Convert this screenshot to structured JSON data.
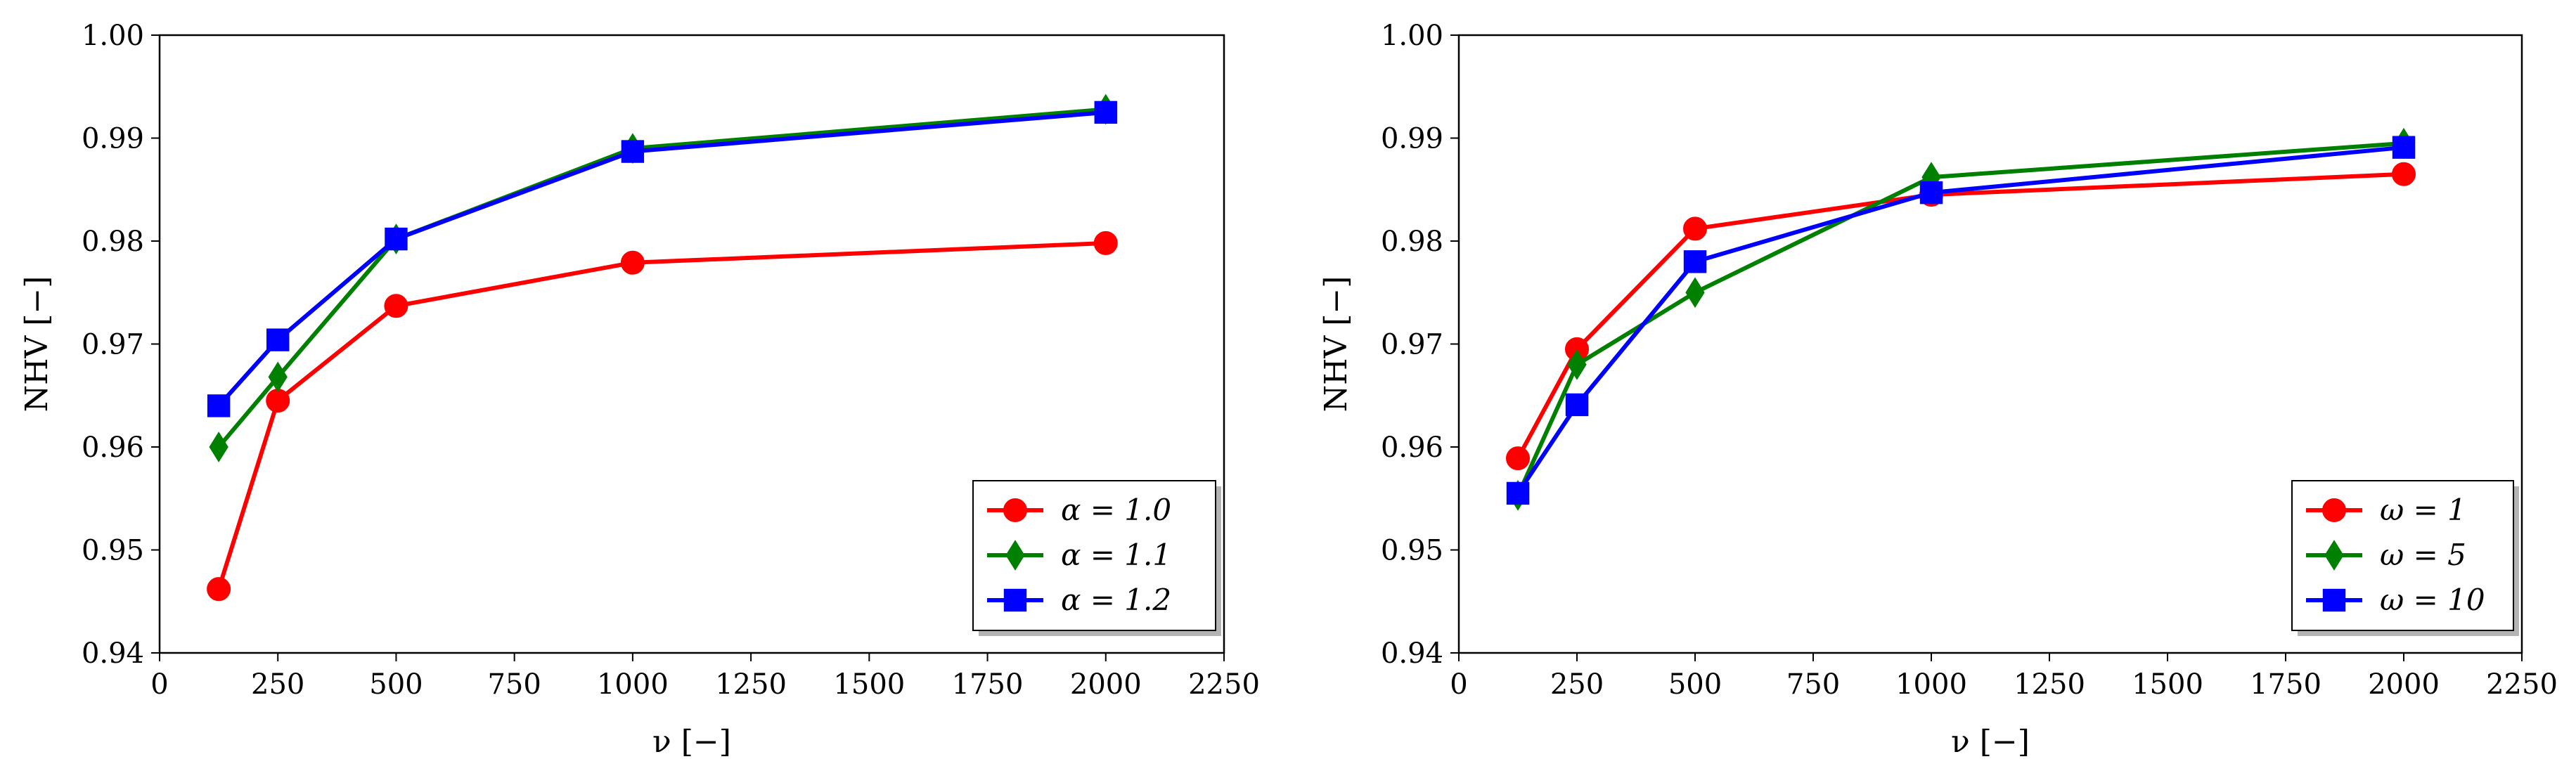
{
  "chart_data": [
    {
      "type": "line",
      "xlabel": "ν [−]",
      "ylabel": "NHV [−]",
      "xlim": [
        0,
        2250
      ],
      "ylim": [
        0.94,
        1.0
      ],
      "xticks": [
        0,
        250,
        500,
        750,
        1000,
        1250,
        1500,
        1750,
        2000,
        2250
      ],
      "xtick_labels": [
        "0",
        "250",
        "500",
        "750",
        "1000",
        "1250",
        "1500",
        "1750",
        "2000",
        "2250"
      ],
      "yticks": [
        0.94,
        0.95,
        0.96,
        0.97,
        0.98,
        0.99,
        1.0
      ],
      "ytick_labels": [
        "0.94",
        "0.95",
        "0.96",
        "0.97",
        "0.98",
        "0.99",
        "1.00"
      ],
      "grid": false,
      "legend_position": "bottom-right",
      "x": [
        125,
        250,
        500,
        1000,
        2000
      ],
      "series": [
        {
          "name": "α = 1.0",
          "color": "#ff0000",
          "marker": "circle",
          "values": [
            0.9462,
            0.9645,
            0.9737,
            0.9779,
            0.9798
          ]
        },
        {
          "name": "α = 1.1",
          "color": "#008000",
          "marker": "diamond",
          "values": [
            0.96,
            0.9668,
            0.9802,
            0.989,
            0.9928
          ]
        },
        {
          "name": "α = 1.2",
          "color": "#0000ff",
          "marker": "square",
          "values": [
            0.964,
            0.9704,
            0.9802,
            0.9887,
            0.9925
          ]
        }
      ]
    },
    {
      "type": "line",
      "xlabel": "ν [−]",
      "ylabel": "NHV [−]",
      "xlim": [
        0,
        2250
      ],
      "ylim": [
        0.94,
        1.0
      ],
      "xticks": [
        0,
        250,
        500,
        750,
        1000,
        1250,
        1500,
        1750,
        2000,
        2250
      ],
      "xtick_labels": [
        "0",
        "250",
        "500",
        "750",
        "1000",
        "1250",
        "1500",
        "1750",
        "2000",
        "2250"
      ],
      "yticks": [
        0.94,
        0.95,
        0.96,
        0.97,
        0.98,
        0.99,
        1.0
      ],
      "ytick_labels": [
        "0.94",
        "0.95",
        "0.96",
        "0.97",
        "0.98",
        "0.99",
        "1.00"
      ],
      "grid": false,
      "legend_position": "bottom-right",
      "x": [
        125,
        250,
        500,
        1000,
        2000
      ],
      "series": [
        {
          "name": "ω = 1",
          "color": "#ff0000",
          "marker": "circle",
          "values": [
            0.9589,
            0.9695,
            0.9812,
            0.9845,
            0.9865
          ]
        },
        {
          "name": "ω = 5",
          "color": "#008000",
          "marker": "diamond",
          "values": [
            0.9553,
            0.968,
            0.975,
            0.9862,
            0.9895
          ]
        },
        {
          "name": "ω = 10",
          "color": "#0000ff",
          "marker": "square",
          "values": [
            0.9555,
            0.9641,
            0.978,
            0.9847,
            0.9891
          ]
        }
      ]
    }
  ]
}
